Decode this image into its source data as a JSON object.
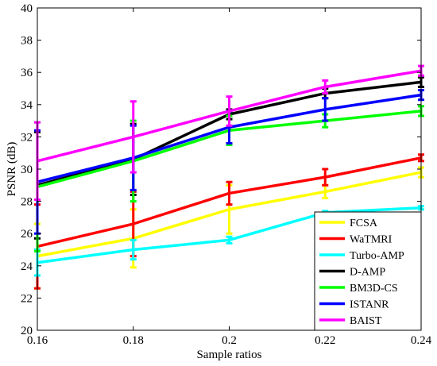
{
  "chart_data": {
    "type": "line",
    "xlabel": "Sample ratios",
    "ylabel": "PSNR (dB)",
    "xlim": [
      0.16,
      0.24
    ],
    "ylim": [
      20,
      40
    ],
    "x": [
      0.16,
      0.18,
      0.2,
      0.22,
      0.24
    ],
    "x_tick_labels": [
      "0.16",
      "0.18",
      "0.2",
      "0.22",
      "0.24"
    ],
    "y_ticks": [
      20,
      22,
      24,
      26,
      28,
      30,
      32,
      34,
      36,
      38,
      40
    ],
    "grid": false,
    "legend_position": "bottom-right",
    "series": [
      {
        "name": "FCSA",
        "color": "#ffff00",
        "values": [
          24.6,
          25.7,
          27.5,
          28.6,
          29.8
        ],
        "error": [
          2.0,
          1.8,
          1.5,
          0.4,
          0.3
        ]
      },
      {
        "name": "WaTMRI",
        "color": "#ff0000",
        "values": [
          25.2,
          26.6,
          28.5,
          29.5,
          30.7
        ],
        "error": [
          2.6,
          2.0,
          0.7,
          0.5,
          0.2
        ]
      },
      {
        "name": "Turbo-AMP",
        "color": "#00ffff",
        "values": [
          24.2,
          25.0,
          25.6,
          27.3,
          27.6
        ],
        "error": [
          0.8,
          0.6,
          0.2,
          0.1,
          0.1
        ]
      },
      {
        "name": "D-AMP",
        "color": "#000000",
        "values": [
          29.0,
          30.6,
          33.4,
          34.7,
          35.4
        ],
        "error": [
          3.3,
          2.2,
          0.3,
          0.3,
          0.3
        ]
      },
      {
        "name": "BM3D-CS",
        "color": "#00ff00",
        "values": [
          28.9,
          30.5,
          32.4,
          33.0,
          33.6
        ],
        "error": [
          4.0,
          2.5,
          0.9,
          0.4,
          0.3
        ]
      },
      {
        "name": "ISTANR",
        "color": "#0000ff",
        "values": [
          29.2,
          30.7,
          32.6,
          33.7,
          34.6
        ],
        "error": [
          3.2,
          2.0,
          1.0,
          0.7,
          0.3
        ]
      },
      {
        "name": "BAIST",
        "color": "#ff00ff",
        "values": [
          30.5,
          32.0,
          33.6,
          35.1,
          36.1
        ],
        "error": [
          2.4,
          2.2,
          0.9,
          0.4,
          0.3
        ]
      }
    ]
  }
}
